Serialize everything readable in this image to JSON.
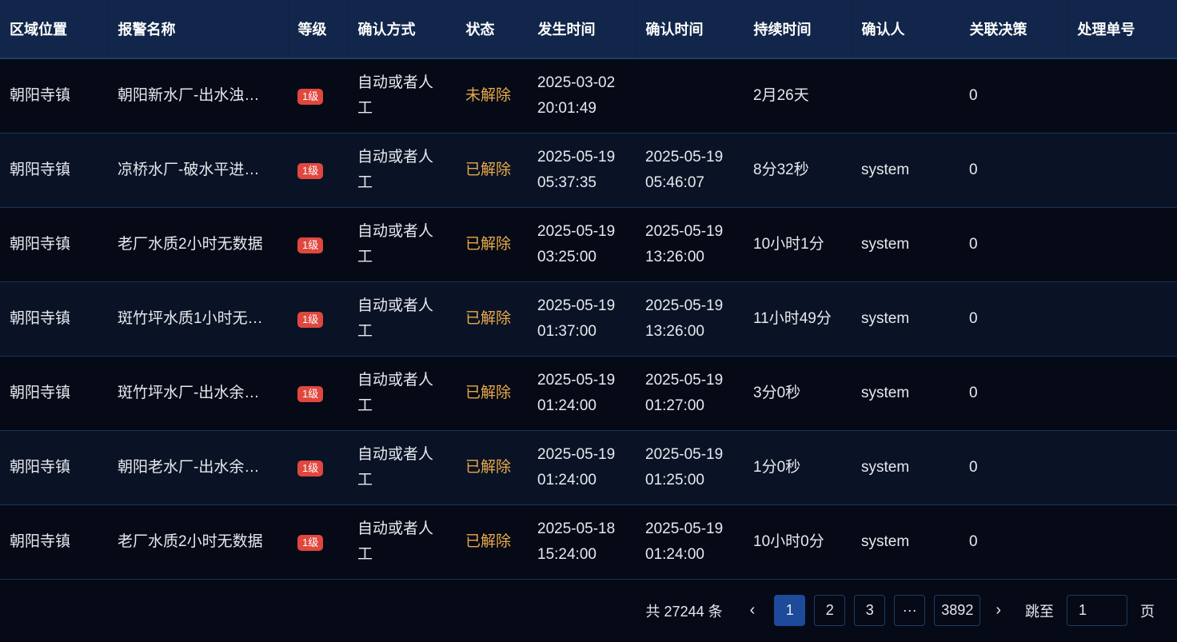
{
  "columns": [
    "区域位置",
    "报警名称",
    "等级",
    "确认方式",
    "状态",
    "发生时间",
    "确认时间",
    "持续时间",
    "确认人",
    "关联决策",
    "处理单号"
  ],
  "rows": [
    {
      "area": "朝阳寺镇",
      "name": "朝阳新水厂-出水浊…",
      "level": "1级",
      "method": "自动或者人工",
      "status": "未解除",
      "occur": [
        "2025-03-02",
        "20:01:49"
      ],
      "confirm": [
        "",
        ""
      ],
      "duration": "2月26天",
      "confirmer": "",
      "decision": "0",
      "ticket": ""
    },
    {
      "area": "朝阳寺镇",
      "name": "凉桥水厂-破水平进…",
      "level": "1级",
      "method": "自动或者人工",
      "status": "已解除",
      "occur": [
        "2025-05-19",
        "05:37:35"
      ],
      "confirm": [
        "2025-05-19",
        "05:46:07"
      ],
      "duration": "8分32秒",
      "confirmer": "system",
      "decision": "0",
      "ticket": ""
    },
    {
      "area": "朝阳寺镇",
      "name": "老厂水质2小时无数据",
      "level": "1级",
      "method": "自动或者人工",
      "status": "已解除",
      "occur": [
        "2025-05-19",
        "03:25:00"
      ],
      "confirm": [
        "2025-05-19",
        "13:26:00"
      ],
      "duration": "10小时1分",
      "confirmer": "system",
      "decision": "0",
      "ticket": ""
    },
    {
      "area": "朝阳寺镇",
      "name": "斑竹坪水质1小时无…",
      "level": "1级",
      "method": "自动或者人工",
      "status": "已解除",
      "occur": [
        "2025-05-19",
        "01:37:00"
      ],
      "confirm": [
        "2025-05-19",
        "13:26:00"
      ],
      "duration": "11小时49分",
      "confirmer": "system",
      "decision": "0",
      "ticket": ""
    },
    {
      "area": "朝阳寺镇",
      "name": "斑竹坪水厂-出水余…",
      "level": "1级",
      "method": "自动或者人工",
      "status": "已解除",
      "occur": [
        "2025-05-19",
        "01:24:00"
      ],
      "confirm": [
        "2025-05-19",
        "01:27:00"
      ],
      "duration": "3分0秒",
      "confirmer": "system",
      "decision": "0",
      "ticket": ""
    },
    {
      "area": "朝阳寺镇",
      "name": "朝阳老水厂-出水余…",
      "level": "1级",
      "method": "自动或者人工",
      "status": "已解除",
      "occur": [
        "2025-05-19",
        "01:24:00"
      ],
      "confirm": [
        "2025-05-19",
        "01:25:00"
      ],
      "duration": "1分0秒",
      "confirmer": "system",
      "decision": "0",
      "ticket": ""
    },
    {
      "area": "朝阳寺镇",
      "name": "老厂水质2小时无数据",
      "level": "1级",
      "method": "自动或者人工",
      "status": "已解除",
      "occur": [
        "2025-05-18",
        "15:24:00"
      ],
      "confirm": [
        "2025-05-19",
        "01:24:00"
      ],
      "duration": "10小时0分",
      "confirmer": "system",
      "decision": "0",
      "ticket": ""
    }
  ],
  "pagination": {
    "total": "共 27244 条",
    "prev_icon": "chevron-left-icon",
    "next_icon": "chevron-right-icon",
    "pages": [
      "1",
      "2",
      "3",
      "···",
      "3892"
    ],
    "current": "1",
    "jump_label": "跳至",
    "jump_value": "1",
    "page_suffix": "页"
  },
  "colors": {
    "header_bg": "#11264a",
    "status": "#e9a94a",
    "badge": "#e0473f",
    "active_page": "#1d4a9a"
  }
}
